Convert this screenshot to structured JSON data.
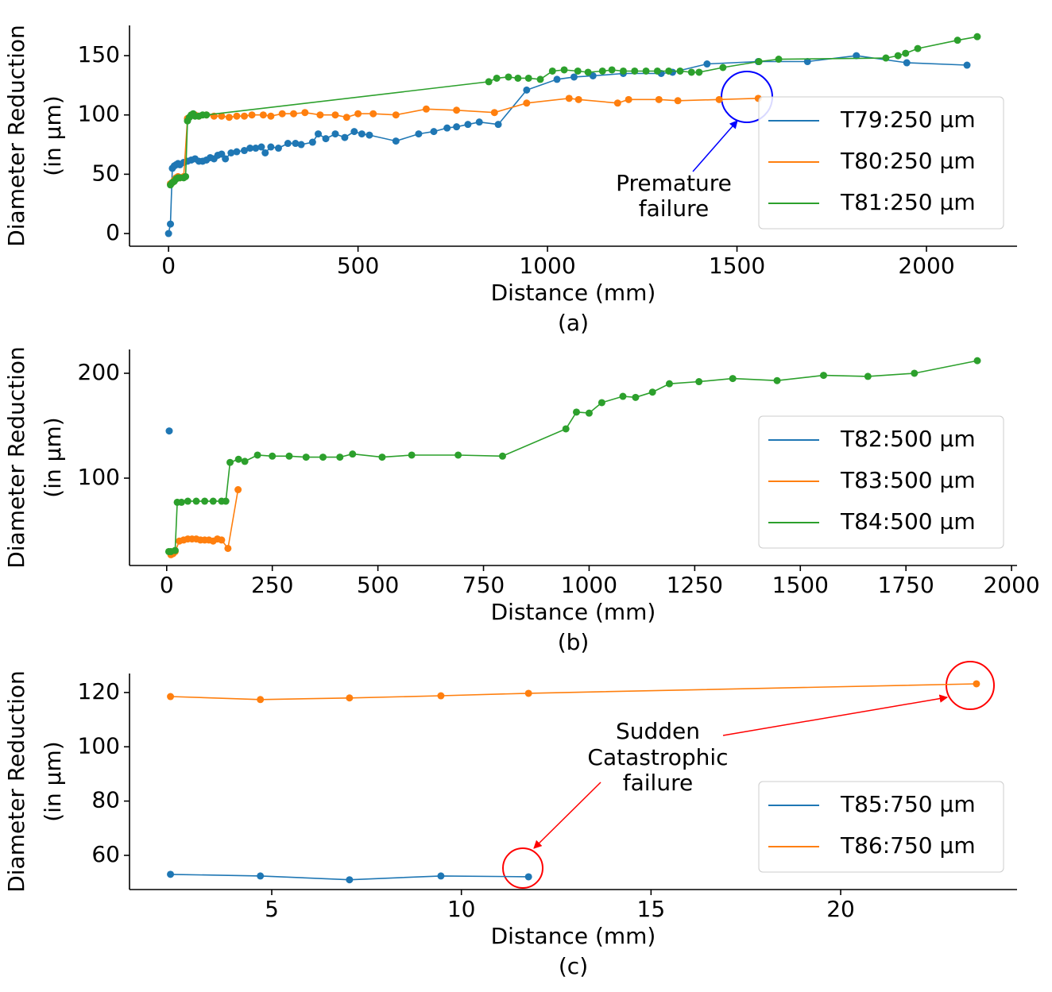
{
  "chart_data": [
    {
      "type": "line",
      "caption": "(a)",
      "xlabel": "Distance (mm)",
      "ylabel": [
        "Diameter Reduction",
        "(in μm)"
      ],
      "xlim": [
        -103,
        2239
      ],
      "ylim": [
        -10.7,
        175.5
      ],
      "xticks": [
        0,
        500,
        1000,
        1500,
        2000
      ],
      "yticks": [
        0,
        50,
        100,
        150
      ],
      "grid": false,
      "legend": "lower right",
      "annotation": [
        "Premature",
        "failure"
      ],
      "series": [
        {
          "name": "T79:250 μm",
          "color": "#1f77b4",
          "x": [
            0,
            5,
            10,
            15,
            20,
            25,
            30,
            40,
            50,
            60,
            70,
            80,
            90,
            100,
            110,
            120,
            130,
            140,
            150,
            165,
            180,
            200,
            215,
            230,
            245,
            255,
            270,
            290,
            315,
            335,
            350,
            380,
            395,
            415,
            440,
            465,
            490,
            510,
            530,
            600,
            660,
            700,
            735,
            760,
            790,
            820,
            870,
            945,
            1025,
            1070,
            1120,
            1200,
            1300,
            1330,
            1421,
            1556,
            1686,
            1815,
            1948,
            2107
          ],
          "values": [
            0,
            8,
            55,
            57,
            58,
            59,
            58,
            60,
            61,
            62,
            63,
            61,
            61,
            62,
            64,
            63,
            66,
            67,
            63,
            68,
            69,
            70,
            72,
            72,
            73,
            68,
            73,
            72,
            76,
            76,
            75,
            77,
            84,
            80,
            84,
            81,
            86,
            84,
            83,
            78,
            84,
            86,
            89,
            90,
            92,
            94,
            92,
            121,
            130,
            132,
            133,
            135,
            135,
            136,
            143,
            145,
            145,
            150,
            144,
            142
          ]
        },
        {
          "name": "T80:250 μm",
          "color": "#ff7f0e",
          "x": [
            5,
            10,
            15,
            20,
            25,
            30,
            40,
            50,
            60,
            70,
            80,
            100,
            120,
            140,
            160,
            180,
            200,
            220,
            250,
            270,
            300,
            330,
            360,
            400,
            440,
            470,
            500,
            540,
            600,
            680,
            760,
            860,
            945,
            1057,
            1082,
            1185,
            1214,
            1294,
            1344,
            1453,
            1556
          ],
          "values": [
            42,
            43,
            45,
            47,
            48,
            47,
            48,
            97,
            100,
            100,
            99,
            100,
            99,
            99,
            98,
            99,
            99,
            100,
            100,
            99,
            101,
            101,
            102,
            100,
            100,
            98,
            101,
            101,
            100,
            105,
            104,
            102,
            110,
            114,
            113,
            110,
            113,
            113,
            112,
            113,
            114
          ]
        },
        {
          "name": "T81:250 μm",
          "color": "#2ca02c",
          "x": [
            5,
            10,
            15,
            20,
            25,
            30,
            40,
            45,
            50,
            55,
            60,
            65,
            70,
            80,
            90,
            100,
            845,
            866,
            897,
            922,
            950,
            981,
            1013,
            1044,
            1080,
            1107,
            1145,
            1170,
            1200,
            1230,
            1260,
            1290,
            1320,
            1350,
            1380,
            1400,
            1463,
            1558,
            1610,
            1893,
            1925,
            1945,
            1977,
            2082,
            2134
          ],
          "values": [
            41,
            43,
            44,
            46,
            47,
            47,
            47,
            48,
            95,
            98,
            100,
            101,
            99,
            99,
            100,
            100,
            128,
            131,
            132,
            131,
            131,
            130,
            137,
            138,
            137,
            136,
            137,
            138,
            137,
            137,
            137,
            137,
            137,
            137,
            136,
            136,
            140,
            145,
            147,
            148,
            150,
            152,
            156,
            163,
            166
          ]
        }
      ]
    },
    {
      "type": "line",
      "caption": "(b)",
      "xlabel": "Distance (mm)",
      "ylabel": [
        "Diameter Reduction",
        "(in μm)"
      ],
      "xlim": [
        -88,
        2013
      ],
      "ylim": [
        16.7,
        222.7
      ],
      "xticks": [
        0,
        250,
        500,
        750,
        1000,
        1250,
        1500,
        1750,
        2000
      ],
      "yticks": [
        100,
        200
      ],
      "grid": false,
      "legend": "lower right",
      "series": [
        {
          "name": "T82:500 μm",
          "color": "#1f77b4",
          "x": [
            6
          ],
          "values": [
            145
          ]
        },
        {
          "name": "T83:500 μm",
          "color": "#ff7f0e",
          "x": [
            10,
            15,
            20,
            30,
            40,
            50,
            60,
            70,
            80,
            90,
            100,
            110,
            120,
            130,
            145,
            169
          ],
          "values": [
            27,
            28,
            30,
            40,
            41,
            42,
            42,
            42,
            41,
            41,
            41,
            40,
            42,
            41,
            33,
            89
          ]
        },
        {
          "name": "T84:500 μm",
          "color": "#2ca02c",
          "x": [
            5,
            10,
            20,
            25,
            35,
            50,
            70,
            90,
            110,
            130,
            140,
            150,
            170,
            185,
            215,
            250,
            290,
            330,
            370,
            410,
            440,
            510,
            580,
            690,
            795,
            945,
            970,
            1000,
            1030,
            1080,
            1110,
            1150,
            1190,
            1260,
            1340,
            1445,
            1555,
            1660,
            1770,
            1919
          ],
          "values": [
            30,
            30,
            31,
            77,
            77,
            78,
            78,
            78,
            78,
            78,
            78,
            115,
            118,
            116,
            122,
            121,
            121,
            120,
            120,
            120,
            123,
            120,
            122,
            122,
            121,
            147,
            163,
            162,
            172,
            178,
            177,
            182,
            190,
            192,
            195,
            193,
            198,
            197,
            200,
            212
          ]
        }
      ]
    },
    {
      "type": "line",
      "caption": "(c)",
      "xlabel": "Distance (mm)",
      "ylabel": [
        "Diameter Reduction",
        "(in μm)"
      ],
      "xlim": [
        1.25,
        24.65
      ],
      "ylim": [
        47.4,
        127.0
      ],
      "xticks": [
        5,
        10,
        15,
        20
      ],
      "yticks": [
        60,
        80,
        100,
        120
      ],
      "grid": false,
      "legend": "lower right",
      "annotation": [
        "Sudden",
        "Catastrophic",
        "failure"
      ],
      "series": [
        {
          "name": "T85:750 μm",
          "color": "#1f77b4",
          "x": [
            2.33,
            4.7,
            7.05,
            9.46,
            11.77
          ],
          "values": [
            53.0,
            52.4,
            51.0,
            52.4,
            52.1
          ]
        },
        {
          "name": "T86:750 μm",
          "color": "#ff7f0e",
          "x": [
            2.33,
            4.7,
            7.05,
            9.46,
            11.77,
            23.58
          ],
          "values": [
            118.5,
            117.4,
            118.0,
            118.8,
            119.7,
            123.2
          ]
        }
      ]
    }
  ]
}
